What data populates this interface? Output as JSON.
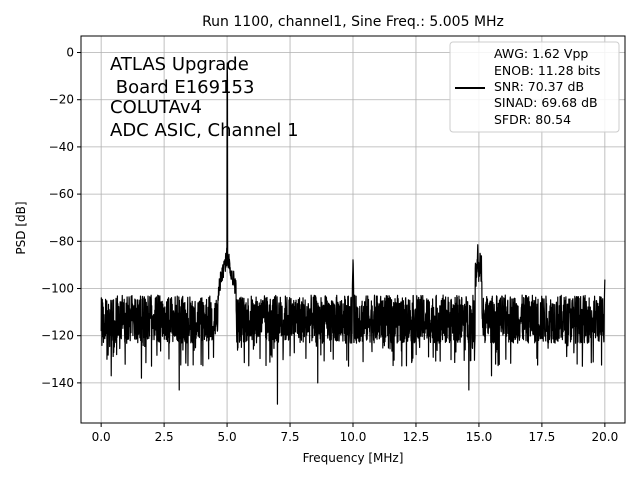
{
  "chart_data": {
    "type": "line",
    "title": "Run 1100, channel1, Sine Freq.: 5.005 MHz",
    "xlabel": "Frequency [MHz]",
    "ylabel": "PSD [dB]",
    "xlim": [
      -0.8,
      20.8
    ],
    "ylim": [
      -157,
      7
    ],
    "xticks": [
      0.0,
      2.5,
      5.0,
      7.5,
      10.0,
      12.5,
      15.0,
      17.5,
      20.0
    ],
    "xtick_labels": [
      "0.0",
      "2.5",
      "5.0",
      "7.5",
      "10.0",
      "12.5",
      "15.0",
      "17.5",
      "20.0"
    ],
    "yticks": [
      0,
      -20,
      -40,
      -60,
      -80,
      -100,
      -120,
      -140
    ],
    "ytick_labels": [
      "0",
      "−20",
      "−40",
      "−60",
      "−80",
      "−100",
      "−120",
      "−140"
    ],
    "grid": true,
    "annotation": [
      "ATLAS Upgrade",
      " Board E169153",
      "COLUTAv4",
      "ADC ASIC, Channel 1"
    ],
    "legend": {
      "position": "top-right",
      "lines": [
        "AWG: 1.62 Vpp",
        "ENOB: 11.28 bits",
        "SNR: 70.37 dB",
        "SINAD: 69.68 dB",
        "SFDR: 80.54"
      ]
    },
    "series": [
      {
        "color": "#000000",
        "noise_floor_db": -113,
        "noise_min_db": -124,
        "noise_max_db": -100,
        "features": [
          {
            "freq": 5.005,
            "peak_db": 0
          },
          {
            "freq": 5.1,
            "peak_db": -88
          },
          {
            "freq": 4.9,
            "peak_db": -95
          },
          {
            "freq": 10.0,
            "peak_db": -87
          },
          {
            "freq": 14.95,
            "peak_db": -81
          },
          {
            "freq": 15.05,
            "peak_db": -83
          },
          {
            "freq": 20.0,
            "peak_db": -96
          }
        ],
        "dips": [
          {
            "freq": 0.4,
            "db": -137
          },
          {
            "freq": 1.6,
            "db": -138
          },
          {
            "freq": 3.1,
            "db": -143
          },
          {
            "freq": 7.0,
            "db": -149
          },
          {
            "freq": 8.6,
            "db": -140
          },
          {
            "freq": 14.6,
            "db": -143
          },
          {
            "freq": 15.5,
            "db": -137
          },
          {
            "freq": 10.4,
            "db": -131
          },
          {
            "freq": 18.9,
            "db": -132
          }
        ]
      }
    ]
  }
}
